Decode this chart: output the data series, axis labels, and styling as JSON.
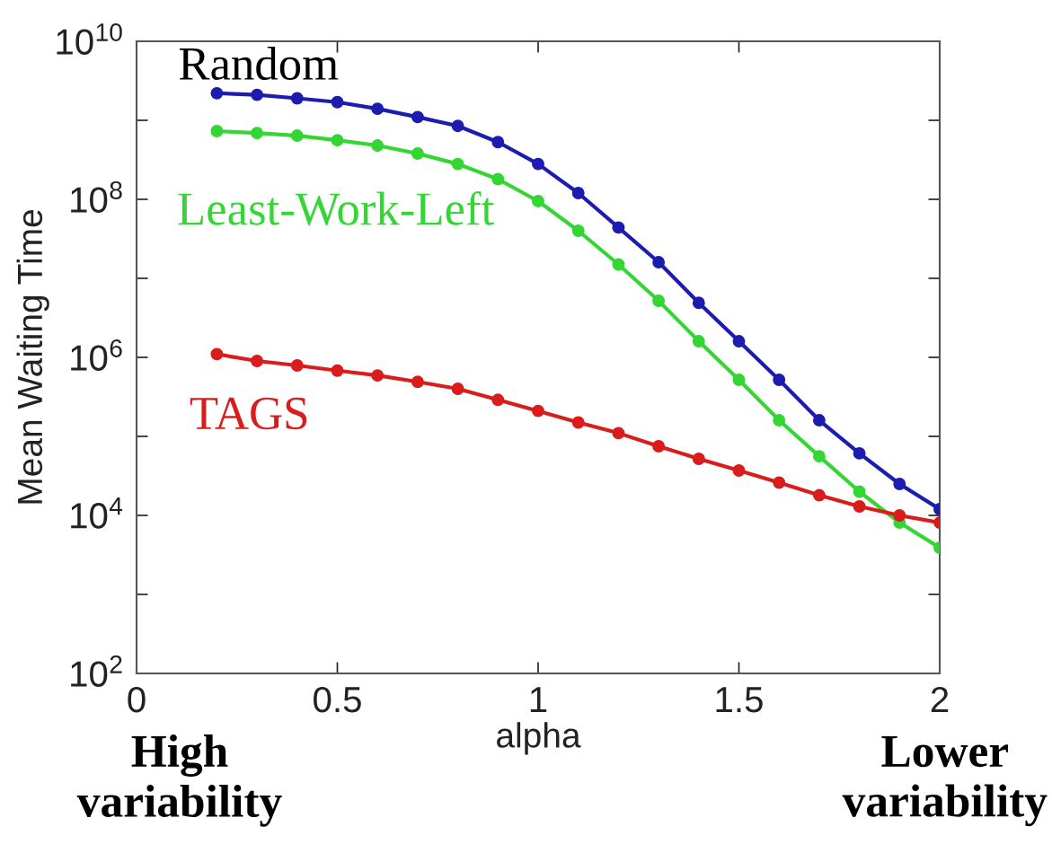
{
  "chart_data": {
    "type": "line",
    "xlabel": "alpha",
    "ylabel": "Mean Waiting Time",
    "x": [
      0.2,
      0.3,
      0.4,
      0.5,
      0.6,
      0.7,
      0.8,
      0.9,
      1.0,
      1.1,
      1.2,
      1.3,
      1.4,
      1.5,
      1.6,
      1.7,
      1.8,
      1.9,
      2.0
    ],
    "xlim": [
      0,
      2
    ],
    "xticks": [
      0,
      0.5,
      1,
      1.5,
      2
    ],
    "ylim": [
      100,
      10000000000
    ],
    "yticks": [
      {
        "value": 100,
        "label": "10$^{2}$"
      },
      {
        "value": 1000,
        "label": null
      },
      {
        "value": 10000,
        "label": "10$^{4}$"
      },
      {
        "value": 100000,
        "label": null
      },
      {
        "value": 1000000,
        "label": "10$^{6}$"
      },
      {
        "value": 10000000,
        "label": null
      },
      {
        "value": 100000000,
        "label": "10$^{8}$"
      },
      {
        "value": 1000000000,
        "label": null
      },
      {
        "value": 10000000000,
        "label": "10$^{10}$"
      }
    ],
    "log": "y",
    "grid": false,
    "legend": false,
    "marker": "circle",
    "line_style": "solid",
    "series": [
      {
        "name": "Random",
        "color": "#1c1cb0",
        "values": [
          2200000000.0,
          2100000000.0,
          1900000000.0,
          1700000000.0,
          1400000000.0,
          1100000000.0,
          850000000.0,
          530000000.0,
          280000000.0,
          120000000.0,
          44000000.0,
          16000000.0,
          4900000.0,
          1600000.0,
          520000.0,
          160000.0,
          61000.0,
          25000.0,
          12000.0
        ]
      },
      {
        "name": "Least-Work-Left",
        "color": "#33d633",
        "values": [
          730000000.0,
          690000000.0,
          640000000.0,
          560000000.0,
          480000000.0,
          380000000.0,
          280000000.0,
          180000000.0,
          95000000.0,
          40000000.0,
          15000000.0,
          5200000.0,
          1600000.0,
          520000.0,
          160000.0,
          56000.0,
          20000.0,
          8100.0,
          3900.0
        ]
      },
      {
        "name": "TAGS",
        "color": "#d91c1c",
        "values": [
          1100000.0,
          900000.0,
          790000.0,
          680000.0,
          590000.0,
          490000.0,
          400000.0,
          290000.0,
          210000.0,
          150000.0,
          110000.0,
          75000.0,
          52000.0,
          37000.0,
          26000.0,
          18000.0,
          13000.0,
          10000.0,
          8100.0
        ]
      }
    ],
    "annotations": [
      "High\nvariability",
      "Lower\nvariability"
    ]
  }
}
